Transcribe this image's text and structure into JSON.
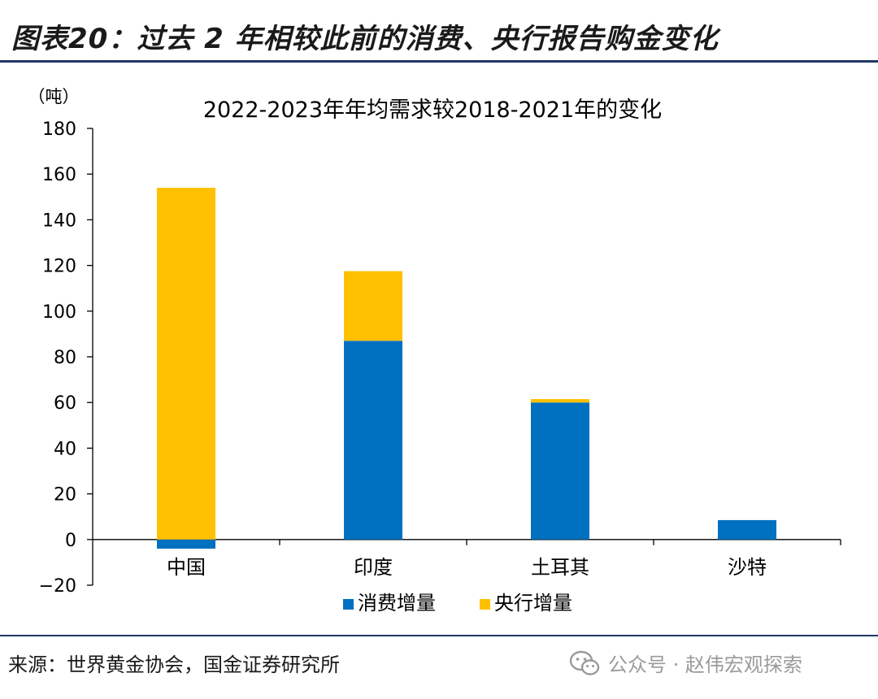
{
  "figure_title": "图表20：过去 2 年相较此前的消费、央行报告购金变化",
  "source": "来源：世界黄金协会，国金证券研究所",
  "watermark": {
    "text": "公众号 · 赵伟宏观探索",
    "icon": "wechat-icon"
  },
  "chart_data": {
    "type": "bar",
    "stacked": true,
    "title": "2022-2023年年均需求较2018-2021年的变化",
    "ylabel": "（吨）",
    "xlabel": "",
    "categories": [
      "中国",
      "印度",
      "土耳其",
      "沙特"
    ],
    "series": [
      {
        "name": "消费增量",
        "values": [
          -4,
          87,
          60,
          8.5
        ],
        "color": "#0070c0"
      },
      {
        "name": "央行增量",
        "values": [
          154,
          30.5,
          1.5,
          0
        ],
        "color": "#ffc000"
      }
    ],
    "ylim": [
      -20,
      180
    ],
    "yticks": [
      -20,
      0,
      20,
      40,
      60,
      80,
      100,
      120,
      140,
      160,
      180
    ],
    "grid": false,
    "legend_position": "bottom"
  }
}
